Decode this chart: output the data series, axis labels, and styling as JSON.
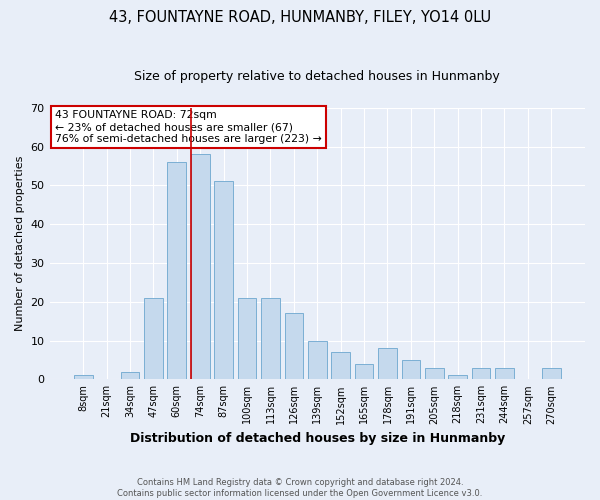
{
  "title": "43, FOUNTAYNE ROAD, HUNMANBY, FILEY, YO14 0LU",
  "subtitle": "Size of property relative to detached houses in Hunmanby",
  "xlabel": "Distribution of detached houses by size in Hunmanby",
  "ylabel": "Number of detached properties",
  "bar_labels": [
    "8sqm",
    "21sqm",
    "34sqm",
    "47sqm",
    "60sqm",
    "74sqm",
    "87sqm",
    "100sqm",
    "113sqm",
    "126sqm",
    "139sqm",
    "152sqm",
    "165sqm",
    "178sqm",
    "191sqm",
    "205sqm",
    "218sqm",
    "231sqm",
    "244sqm",
    "257sqm",
    "270sqm"
  ],
  "bar_values": [
    1,
    0,
    2,
    21,
    56,
    58,
    51,
    21,
    21,
    17,
    10,
    7,
    4,
    8,
    5,
    3,
    1,
    3,
    3,
    0,
    3
  ],
  "bar_color": "#c5d9ed",
  "bar_edgecolor": "#7bafd4",
  "ylim": [
    0,
    70
  ],
  "yticks": [
    0,
    10,
    20,
    30,
    40,
    50,
    60,
    70
  ],
  "property_line_index": 5,
  "property_line_color": "#cc0000",
  "annotation_title": "43 FOUNTAYNE ROAD: 72sqm",
  "annotation_line1": "← 23% of detached houses are smaller (67)",
  "annotation_line2": "76% of semi-detached houses are larger (223) →",
  "annotation_box_edgecolor": "#cc0000",
  "footer1": "Contains HM Land Registry data © Crown copyright and database right 2024.",
  "footer2": "Contains public sector information licensed under the Open Government Licence v3.0.",
  "background_color": "#e8eef8",
  "plot_background": "#e8eef8",
  "title_fontsize": 10.5,
  "subtitle_fontsize": 9,
  "ylabel_fontsize": 8,
  "xlabel_fontsize": 9
}
